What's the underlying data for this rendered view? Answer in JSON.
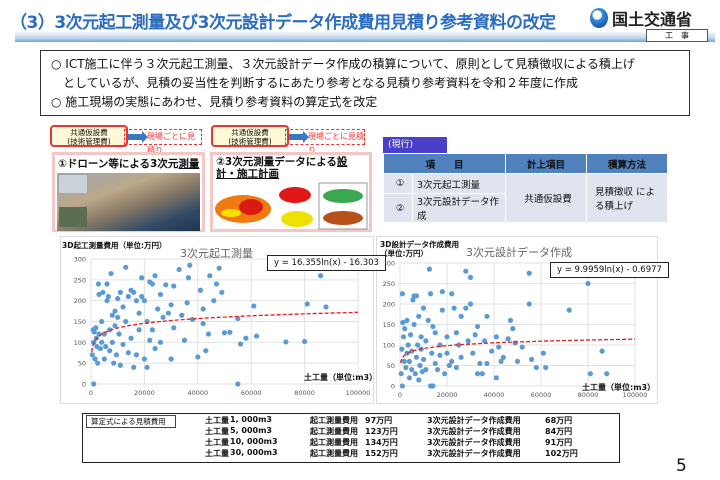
{
  "header": {
    "title": "（3）3次元起工測量及び3次元設計データ作成費用見積り参考資料の改定",
    "logo_text": "国土交通省",
    "tag": "工　事"
  },
  "summary": {
    "lines": [
      "○ ICT施工に伴う３次元起工測量、３次元設計データ作成の積算について、原則として見積徴収による積上げ",
      "　としているが、見積の妥当性を判断するにあたり参考となる見積り参考資料を令和２年度に作成",
      "○ 施工現場の実態にあわせ、見積り参考資料の算定式を改定"
    ]
  },
  "callouts": [
    {
      "label": "共通仮設費\n(技術管理費)",
      "note": "現場ごとに見積り"
    },
    {
      "label": "共通仮設費\n(技術管理費)",
      "note": "現場ごとに見積り"
    }
  ],
  "panels": [
    {
      "title_plain": "①ドローン等による3次元",
      "title_em": "測量"
    },
    {
      "title_plain": "②3次元測量データによる",
      "title_em": "設計・施工計画"
    }
  ],
  "current": {
    "tag": "(現行)",
    "headers": [
      "項　　目",
      "計上項目",
      "積算方法"
    ],
    "rows": [
      {
        "no": "①",
        "item": "3次元起工測量"
      },
      {
        "no": "②",
        "item": "3次元設計データ作成"
      }
    ],
    "merged_item": "共通仮設費",
    "merged_method": "見積徴収 による積上げ"
  },
  "colors": {
    "title": "#2a6cc0",
    "table_header": "#4f81bd",
    "table_cell": "#dfe4ee",
    "tag": "#4a3fc8",
    "points": "#5b9bd5",
    "trend": "#e02020"
  },
  "chart_data": [
    {
      "type": "scatter",
      "title": "3次元起工測量",
      "ylabel": "3D起工測量費用（単位:万円）",
      "xlabel": "土工量（単位:m3）",
      "xlim": [
        0,
        100000
      ],
      "ylim": [
        0,
        300
      ],
      "xticks": [
        0,
        20000,
        40000,
        60000,
        80000,
        100000
      ],
      "yticks": [
        0,
        50,
        100,
        150,
        200,
        250,
        300
      ],
      "grid": true,
      "trendline": {
        "equation": "y = 16.355ln(x) - 16.303",
        "a": 16.355,
        "b": -16.303,
        "style": "dashed red"
      },
      "points": [
        [
          500,
          70
        ],
        [
          800,
          130
        ],
        [
          1000,
          100
        ],
        [
          1000,
          0
        ],
        [
          1200,
          125
        ],
        [
          1500,
          60
        ],
        [
          1800,
          135
        ],
        [
          2000,
          110
        ],
        [
          2200,
          90
        ],
        [
          2500,
          50
        ],
        [
          2800,
          240
        ],
        [
          3000,
          120
        ],
        [
          3000,
          215
        ],
        [
          3500,
          85
        ],
        [
          4000,
          150
        ],
        [
          4000,
          100
        ],
        [
          4500,
          220
        ],
        [
          5000,
          60
        ],
        [
          5000,
          120
        ],
        [
          5500,
          90
        ],
        [
          6000,
          240
        ],
        [
          6000,
          200
        ],
        [
          6500,
          210
        ],
        [
          7000,
          130
        ],
        [
          7000,
          80
        ],
        [
          7500,
          265
        ],
        [
          8000,
          165
        ],
        [
          8000,
          100
        ],
        [
          8500,
          50
        ],
        [
          9000,
          175
        ],
        [
          9000,
          140
        ],
        [
          9500,
          70
        ],
        [
          10000,
          205
        ],
        [
          10000,
          160
        ],
        [
          10500,
          120
        ],
        [
          11000,
          45
        ],
        [
          11000,
          220
        ],
        [
          12000,
          185
        ],
        [
          12000,
          95
        ],
        [
          13000,
          280
        ],
        [
          13000,
          150
        ],
        [
          14000,
          210
        ],
        [
          14000,
          75
        ],
        [
          15000,
          225
        ],
        [
          15000,
          110
        ],
        [
          16000,
          40
        ],
        [
          16000,
          220
        ],
        [
          17000,
          70
        ],
        [
          17000,
          200
        ],
        [
          18000,
          170
        ],
        [
          18000,
          130
        ],
        [
          19000,
          255
        ],
        [
          19000,
          210
        ],
        [
          20000,
          60
        ],
        [
          20000,
          200
        ],
        [
          21000,
          40
        ],
        [
          21000,
          150
        ],
        [
          22000,
          245
        ],
        [
          22000,
          105
        ],
        [
          23000,
          130
        ],
        [
          23000,
          240
        ],
        [
          24000,
          260
        ],
        [
          24000,
          85
        ],
        [
          25000,
          180
        ],
        [
          26000,
          215
        ],
        [
          26000,
          100
        ],
        [
          27000,
          160
        ],
        [
          28000,
          238
        ],
        [
          29000,
          170
        ],
        [
          30000,
          60
        ],
        [
          30000,
          190
        ],
        [
          31000,
          235
        ],
        [
          31000,
          135
        ],
        [
          33000,
          275
        ],
        [
          34000,
          165
        ],
        [
          35000,
          105
        ],
        [
          36000,
          195
        ],
        [
          36500,
          255
        ],
        [
          37000,
          285
        ],
        [
          38000,
          155
        ],
        [
          40000,
          65
        ],
        [
          41000,
          225
        ],
        [
          42000,
          180
        ],
        [
          42000,
          145
        ],
        [
          43000,
          80
        ],
        [
          44000,
          120
        ],
        [
          44500,
          260
        ],
        [
          46000,
          200
        ],
        [
          47000,
          240
        ],
        [
          48000,
          278
        ],
        [
          49000,
          220
        ],
        [
          50000,
          123
        ],
        [
          52000,
          124
        ],
        [
          55000,
          0
        ],
        [
          55000,
          157
        ],
        [
          56000,
          96
        ],
        [
          58000,
          110
        ],
        [
          61000,
          187
        ],
        [
          62000,
          115
        ],
        [
          73000,
          101
        ],
        [
          80000,
          102
        ],
        [
          81000,
          192
        ],
        [
          86000,
          260
        ],
        [
          88000,
          185
        ]
      ]
    },
    {
      "type": "scatter",
      "title": "3次元設計データ作成",
      "ylabel": "3D設計データ作成費用（単位:万円）",
      "xlabel": "土工量（単位:m3）",
      "xlim": [
        0,
        100000
      ],
      "ylim": [
        0,
        300
      ],
      "xticks": [
        0,
        20000,
        40000,
        60000,
        80000,
        100000
      ],
      "yticks": [
        0,
        50,
        100,
        150,
        200,
        250,
        300
      ],
      "grid": true,
      "trendline": {
        "equation": "y = 9.9959ln(x) - 0.6977",
        "a": 9.9959,
        "b": -0.6977,
        "style": "dashed red"
      },
      "points": [
        [
          500,
          30
        ],
        [
          800,
          90
        ],
        [
          1000,
          225
        ],
        [
          1000,
          0
        ],
        [
          1200,
          155
        ],
        [
          1500,
          120
        ],
        [
          1800,
          60
        ],
        [
          2000,
          140
        ],
        [
          2500,
          45
        ],
        [
          3000,
          80
        ],
        [
          3000,
          160
        ],
        [
          3500,
          100
        ],
        [
          4000,
          20
        ],
        [
          4000,
          60
        ],
        [
          4500,
          125
        ],
        [
          5000,
          40
        ],
        [
          5000,
          85
        ],
        [
          5500,
          210
        ],
        [
          6000,
          220
        ],
        [
          6000,
          150
        ],
        [
          6500,
          30
        ],
        [
          7000,
          70
        ],
        [
          7000,
          220
        ],
        [
          7500,
          100
        ],
        [
          8000,
          170
        ],
        [
          8000,
          15
        ],
        [
          8500,
          50
        ],
        [
          9000,
          120
        ],
        [
          9000,
          90
        ],
        [
          9500,
          35
        ],
        [
          10000,
          190
        ],
        [
          10000,
          65
        ],
        [
          11000,
          110
        ],
        [
          11000,
          40
        ],
        [
          12000,
          160
        ],
        [
          12500,
          285
        ],
        [
          13000,
          225
        ],
        [
          13000,
          0
        ],
        [
          13500,
          80
        ],
        [
          14000,
          145
        ],
        [
          14000,
          0
        ],
        [
          15000,
          130
        ],
        [
          15000,
          55
        ],
        [
          16000,
          40
        ],
        [
          17000,
          100
        ],
        [
          17000,
          75
        ],
        [
          18000,
          230
        ],
        [
          18000,
          185
        ],
        [
          19000,
          30
        ],
        [
          20000,
          120
        ],
        [
          20000,
          80
        ],
        [
          21000,
          50
        ],
        [
          22000,
          225
        ],
        [
          22000,
          60
        ],
        [
          23000,
          190
        ],
        [
          24000,
          130
        ],
        [
          24000,
          45
        ],
        [
          25000,
          100
        ],
        [
          26000,
          170
        ],
        [
          26000,
          70
        ],
        [
          28000,
          280
        ],
        [
          28000,
          190
        ],
        [
          29000,
          110
        ],
        [
          30000,
          265
        ],
        [
          30000,
          200
        ],
        [
          31000,
          80
        ],
        [
          32000,
          125
        ],
        [
          33000,
          145
        ],
        [
          33000,
          30
        ],
        [
          34000,
          55
        ],
        [
          35000,
          30
        ],
        [
          36000,
          110
        ],
        [
          37000,
          170
        ],
        [
          37000,
          55
        ],
        [
          39000,
          85
        ],
        [
          41000,
          120
        ],
        [
          41000,
          20
        ],
        [
          42000,
          95
        ],
        [
          43000,
          60
        ],
        [
          44000,
          70
        ],
        [
          46000,
          115
        ],
        [
          47000,
          160
        ],
        [
          48000,
          140
        ],
        [
          49000,
          105
        ],
        [
          50000,
          60
        ],
        [
          52000,
          95
        ],
        [
          55000,
          275
        ],
        [
          55000,
          200
        ],
        [
          56000,
          65
        ],
        [
          58000,
          45
        ],
        [
          61000,
          80
        ],
        [
          62000,
          45
        ],
        [
          72000,
          185
        ],
        [
          80000,
          250
        ],
        [
          81000,
          30
        ],
        [
          86000,
          85
        ],
        [
          88000,
          30
        ]
      ]
    }
  ],
  "estimate": {
    "label": "算定式による見積費用",
    "rows": [
      {
        "volume_label": "土工量",
        "volume": "1, 000m3",
        "survey_label": "起工測量費用",
        "survey": "97万円",
        "design_label": "3次元設計データ作成費用",
        "design": "68万円"
      },
      {
        "volume_label": "土工量",
        "volume": "5, 000m3",
        "survey_label": "起工測量費用",
        "survey": "123万円",
        "design_label": "3次元設計データ作成費用",
        "design": "84万円"
      },
      {
        "volume_label": "土工量",
        "volume": "10, 000m3",
        "survey_label": "起工測量費用",
        "survey": "134万円",
        "design_label": "3次元設計データ作成費用",
        "design": "91万円"
      },
      {
        "volume_label": "土工量",
        "volume": "30, 000m3",
        "survey_label": "起工測量費用",
        "survey": "152万円",
        "design_label": "3次元設計データ作成費用",
        "design": "102万円"
      }
    ]
  },
  "page_number": "5"
}
